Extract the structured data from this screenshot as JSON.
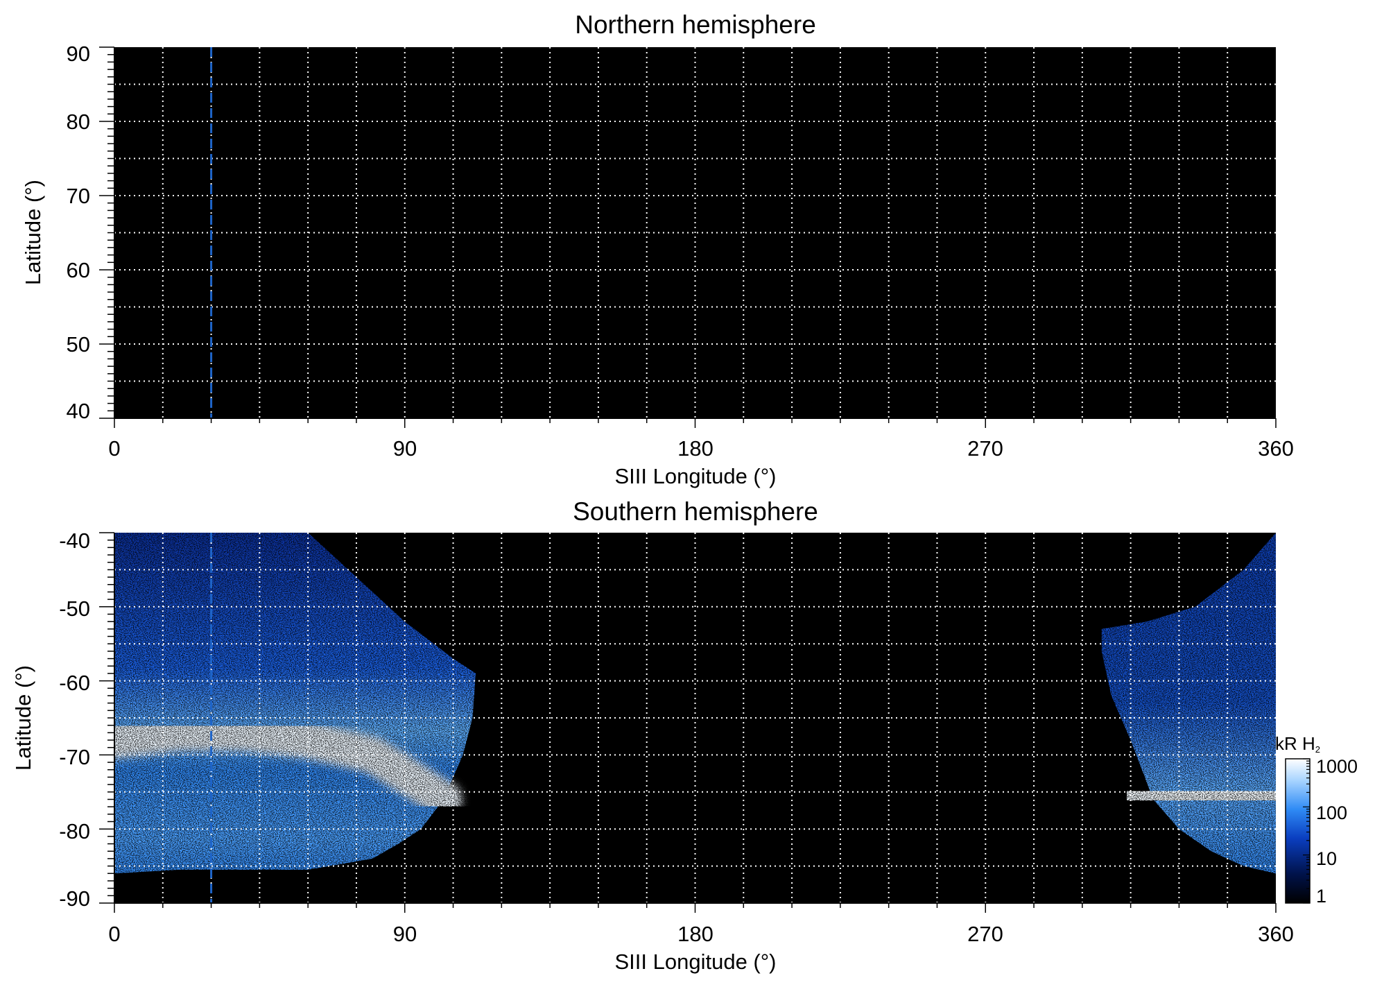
{
  "chart_data": [
    {
      "type": "heatmap",
      "title": "Northern hemisphere",
      "xlabel": "SIII Longitude (°)",
      "ylabel": "Latitude (°)",
      "xlim": [
        0,
        360
      ],
      "ylim": [
        40,
        90
      ],
      "xticks": [
        "0",
        "90",
        "180",
        "270",
        "360"
      ],
      "yticks": [
        "40",
        "50",
        "60",
        "70",
        "80",
        "90"
      ],
      "grid": true,
      "background": "#000000",
      "reference_longitude": 30,
      "reference_color": "#1e64c8",
      "emission": []
    },
    {
      "type": "heatmap",
      "title": "Southern hemisphere",
      "xlabel": "SIII Longitude (°)",
      "ylabel": "Latitude (°)",
      "xlim": [
        0,
        360
      ],
      "ylim": [
        -90,
        -40
      ],
      "xticks": [
        "0",
        "90",
        "180",
        "270",
        "360"
      ],
      "yticks": [
        "-40",
        "-50",
        "-60",
        "-70",
        "-80",
        "-90"
      ],
      "grid": true,
      "background": "#000000",
      "reference_longitude": 30,
      "reference_color": "#1e64c8",
      "emission": [
        {
          "region": "west",
          "outer_boundary": [
            [
              0,
              -40
            ],
            [
              60,
              -40
            ],
            [
              75,
              -46
            ],
            [
              90,
              -52
            ],
            [
              105,
              -57
            ],
            [
              112,
              -59
            ],
            [
              111,
              -65
            ],
            [
              108,
              -70
            ],
            [
              102,
              -76
            ],
            [
              95,
              -80
            ],
            [
              88,
              -82
            ],
            [
              80,
              -84
            ],
            [
              60,
              -85.5
            ],
            [
              20,
              -85.5
            ],
            [
              0,
              -86
            ]
          ],
          "oval": [
            [
              0,
              -68
            ],
            [
              20,
              -67
            ],
            [
              40,
              -67
            ],
            [
              60,
              -68
            ],
            [
              80,
              -70
            ],
            [
              95,
              -74
            ],
            [
              102,
              -76
            ]
          ],
          "oval_width_deg": 5
        },
        {
          "region": "east",
          "outer_boundary": [
            [
              306,
              -53
            ],
            [
              320,
              -52
            ],
            [
              335,
              -50
            ],
            [
              350,
              -45
            ],
            [
              360,
              -40
            ],
            [
              360,
              -86
            ],
            [
              350,
              -85
            ],
            [
              340,
              -83
            ],
            [
              330,
              -80
            ],
            [
              322,
              -76
            ],
            [
              315,
              -68
            ],
            [
              309,
              -62
            ],
            [
              306,
              -56
            ]
          ],
          "oval": [
            [
              318,
              -75
            ],
            [
              330,
              -76
            ],
            [
              345,
              -76
            ],
            [
              360,
              -75
            ]
          ],
          "oval_width_deg": 8
        }
      ]
    }
  ],
  "colorbar": {
    "label": "kR H",
    "label_subscript": "2",
    "scale": "log",
    "range": [
      1,
      1000
    ],
    "ticks": [
      "1",
      "10",
      "100",
      "1000"
    ],
    "colors": [
      "#000000",
      "#00124a",
      "#0a3ec0",
      "#2f8bf5",
      "#a8d4ff",
      "#ffffff"
    ]
  }
}
